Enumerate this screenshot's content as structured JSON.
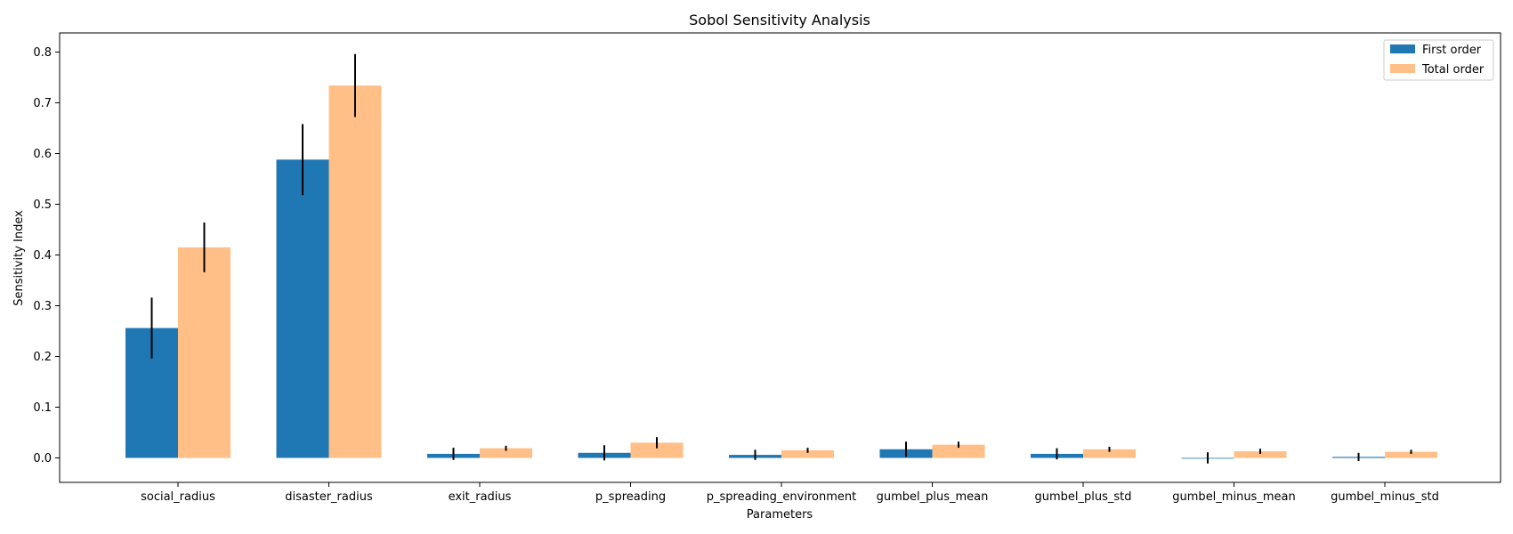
{
  "chart_data": {
    "type": "bar",
    "title": "Sobol Sensitivity Analysis",
    "xlabel": "Parameters",
    "ylabel": "Sensitivity Index",
    "ylim": [
      -0.05,
      0.835
    ],
    "yticks": [
      0.0,
      0.1,
      0.2,
      0.3,
      0.4,
      0.5,
      0.6,
      0.7,
      0.8
    ],
    "ytick_labels": [
      "0.0",
      "0.1",
      "0.2",
      "0.3",
      "0.4",
      "0.5",
      "0.6",
      "0.7",
      "0.8"
    ],
    "grid": false,
    "legend_position": "top-right",
    "categories": [
      "social_radius",
      "disaster_radius",
      "exit_radius",
      "p_spreading",
      "p_spreading_environment",
      "gumbel_plus_mean",
      "gumbel_plus_std",
      "gumbel_minus_mean",
      "gumbel_minus_std"
    ],
    "series": [
      {
        "name": "First order",
        "color": "#1f77b4",
        "values": [
          0.256,
          0.588,
          0.008,
          0.01,
          0.006,
          0.017,
          0.008,
          0.0,
          0.002
        ],
        "errors": [
          0.06,
          0.07,
          0.012,
          0.015,
          0.01,
          0.015,
          0.011,
          0.011,
          0.008
        ]
      },
      {
        "name": "Total order",
        "color": "#ffbf86",
        "values": [
          0.415,
          0.734,
          0.019,
          0.03,
          0.015,
          0.026,
          0.017,
          0.013,
          0.012
        ],
        "errors": [
          0.049,
          0.062,
          0.005,
          0.011,
          0.005,
          0.006,
          0.005,
          0.005,
          0.004
        ]
      }
    ]
  }
}
